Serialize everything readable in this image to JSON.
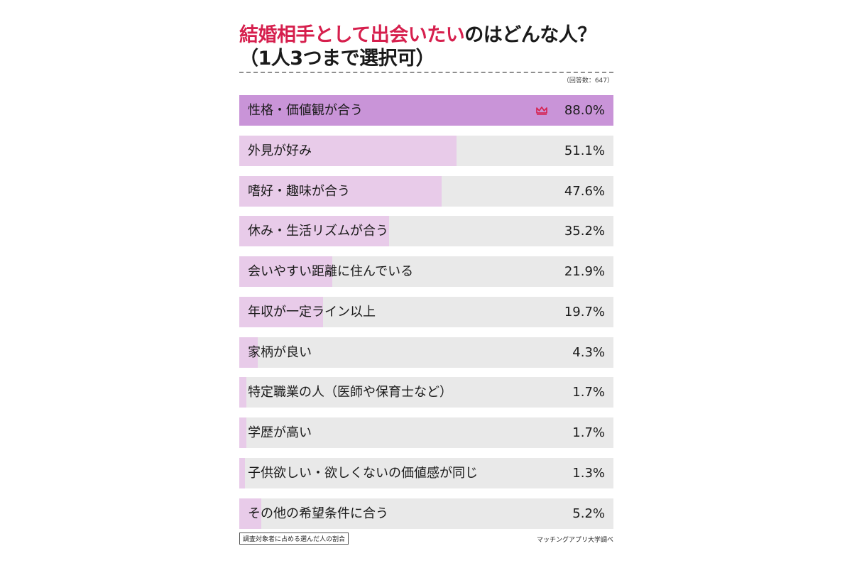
{
  "title": {
    "line1_accent": "結婚相手として出会いたい",
    "line1_rest": "のはどんな人？",
    "line2": "（1人3つまで選択可）"
  },
  "respondents_note": "（回答数：647）",
  "footnote": "調査対象者に占める選んだ人の割合",
  "source": "マッチングアプリ大学調べ",
  "colors": {
    "accent": "#d61f4d",
    "top_bar": "#c994d8",
    "bar": "#e8cbe9",
    "track": "#e9e9e9"
  },
  "icons": [
    "crown-icon"
  ],
  "chart_data": {
    "type": "bar",
    "orientation": "horizontal",
    "title": "結婚相手として出会いたいのはどんな人？（1人3つまで選択可）",
    "categories": [
      "性格・価値観が合う",
      "外見が好み",
      "嗜好・趣味が合う",
      "休み・生活リズムが合う",
      "会いやすい距離に住んでいる",
      "年収が一定ライン以上",
      "家柄が良い",
      "特定職業の人（医師や保育士など）",
      "学歴が高い",
      "子供欲しい・欲しくないの価値感が同じ",
      "その他の希望条件に合う"
    ],
    "values": [
      88.0,
      51.1,
      47.6,
      35.2,
      21.9,
      19.7,
      4.3,
      1.7,
      1.7,
      1.3,
      5.2
    ],
    "value_labels": [
      "88.0%",
      "51.1%",
      "47.6%",
      "35.2%",
      "21.9%",
      "19.7%",
      "4.3%",
      "1.7%",
      "1.7%",
      "1.3%",
      "5.2%"
    ],
    "unit": "%",
    "xlim": [
      0,
      88.0
    ],
    "highlight_index": 0
  }
}
